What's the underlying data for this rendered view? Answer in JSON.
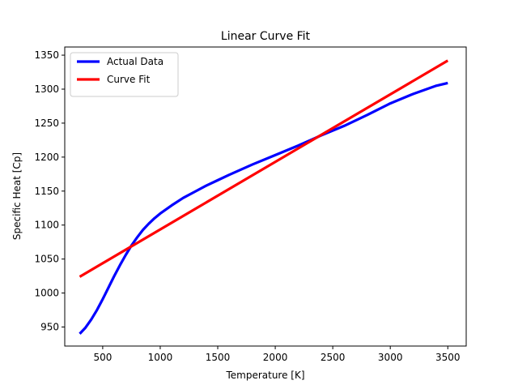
{
  "chart_data": {
    "type": "line",
    "title": "Linear Curve Fit",
    "xlabel": "Temperature [K]",
    "ylabel": "Specific Heat [Cp]",
    "xlim": [
      170,
      3660
    ],
    "ylim": [
      922,
      1362
    ],
    "xticks": [
      500,
      1000,
      1500,
      2000,
      2500,
      3000,
      3500
    ],
    "yticks": [
      950,
      1000,
      1050,
      1100,
      1150,
      1200,
      1250,
      1300,
      1350
    ],
    "grid": false,
    "legend_position": "top-left",
    "series": [
      {
        "name": "Actual Data",
        "color": "#0000ff",
        "x": [
          300,
          350,
          400,
          450,
          500,
          550,
          600,
          650,
          700,
          750,
          800,
          850,
          900,
          950,
          1000,
          1100,
          1200,
          1300,
          1400,
          1500,
          1600,
          1800,
          2000,
          2200,
          2400,
          2600,
          2800,
          3000,
          3200,
          3400,
          3500
        ],
        "y": [
          940,
          949,
          961,
          975,
          991,
          1008,
          1025,
          1041,
          1056,
          1070,
          1082,
          1093,
          1102,
          1110,
          1117,
          1129,
          1140,
          1149,
          1158,
          1166,
          1174,
          1189,
          1203,
          1217,
          1232,
          1246,
          1262,
          1279,
          1293,
          1305,
          1309
        ]
      },
      {
        "name": "Curve Fit",
        "color": "#ff0000",
        "x": [
          300,
          3500
        ],
        "y": [
          1024,
          1342
        ]
      }
    ]
  }
}
